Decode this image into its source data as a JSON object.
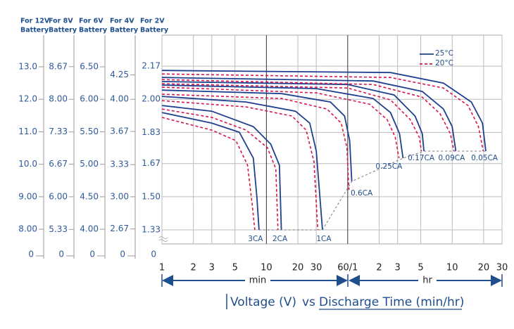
{
  "chart_data": {
    "type": "line",
    "log_x": true,
    "xlim": [
      1,
      1800
    ],
    "xticks": [
      1,
      2,
      3,
      5,
      10,
      20,
      30,
      {
        "value": 60,
        "label": "60/1"
      },
      {
        "value": 120,
        "label": "2"
      },
      {
        "value": 180,
        "label": "3"
      },
      {
        "value": 300,
        "label": "5"
      },
      {
        "value": 600,
        "label": "10"
      },
      {
        "value": 1200,
        "label": "20"
      },
      {
        "value": 1800,
        "label": "30"
      }
    ],
    "x_units": [
      "min",
      "hr"
    ],
    "caption": [
      "Voltage (V)",
      "vs",
      "Discharge Time (min/hr)"
    ],
    "y_axes": [
      {
        "title": [
          "For 12V",
          "Battery"
        ],
        "ylim": [
          7.548,
          13.974
        ],
        "break_label": "0",
        "ticks": [
          {
            "value": 8,
            "label": "8.00"
          },
          {
            "value": 9,
            "label": "9.00"
          },
          {
            "value": 10,
            "label": "10.0"
          },
          {
            "value": 11,
            "label": "11.0"
          },
          {
            "value": 12,
            "label": "12.0"
          },
          {
            "value": 13,
            "label": "13.0"
          }
        ]
      },
      {
        "title": [
          "For 8V",
          "Battery"
        ],
        "ylim": [
          5.032,
          9.316
        ],
        "break_label": "0",
        "ticks": [
          5.33,
          {
            "value": 6,
            "label": "6.00"
          },
          6.67,
          7.33,
          {
            "value": 8,
            "label": "8.00"
          },
          8.67
        ]
      },
      {
        "title": [
          "For 6V",
          "Battery"
        ],
        "ylim": [
          3.774,
          6.987
        ],
        "break_label": "0",
        "ticks": [
          {
            "value": 4,
            "label": "4.00"
          },
          {
            "value": 4.5,
            "label": "4.50"
          },
          {
            "value": 5,
            "label": "5.00"
          },
          {
            "value": 5.5,
            "label": "5.50"
          },
          {
            "value": 6,
            "label": "6.00"
          },
          {
            "value": 6.5,
            "label": "6.50"
          }
        ]
      },
      {
        "title": [
          "For 4V",
          "Battery"
        ],
        "ylim": [
          2.516,
          4.658
        ],
        "break_label": "0",
        "ticks": [
          2.67,
          {
            "value": 3,
            "label": "3.00"
          },
          3.33,
          3.67,
          {
            "value": 4,
            "label": "4.00"
          },
          4.25
        ]
      },
      {
        "title": [
          "For 2V",
          "Battery"
        ],
        "ylim": [
          1.258,
          2.329
        ],
        "break_label": "0",
        "ticks": [
          1.33,
          {
            "value": 1.5,
            "label": "1.50"
          },
          1.67,
          1.83,
          {
            "value": 2,
            "label": "2.00"
          },
          2.17
        ]
      }
    ],
    "grid": true,
    "legend": [
      {
        "name": "25°C",
        "color": "#1f3f8f",
        "dashed": false
      },
      {
        "name": "20°C",
        "color": "#d6154f",
        "dashed": true
      }
    ],
    "curves": [
      {
        "label": "3CA",
        "x": [
          1,
          3,
          5.5,
          7.5,
          8.1,
          8.5
        ],
        "values": [
          1.932,
          1.878,
          1.831,
          1.698,
          1.5,
          1.33
        ],
        "x_20": [
          1,
          3,
          5.1,
          6.6,
          7.3,
          7.75
        ],
        "values_20": [
          1.907,
          1.842,
          1.788,
          1.662,
          1.463,
          1.33
        ]
      },
      {
        "label": "2CA",
        "x": [
          1,
          3,
          7.5,
          11,
          13.3,
          13.9
        ],
        "values": [
          1.968,
          1.939,
          1.86,
          1.77,
          1.662,
          1.33
        ],
        "x_20": [
          1,
          3,
          6.4,
          10.2,
          12.3,
          12.9
        ],
        "values_20": [
          1.95,
          1.907,
          1.842,
          1.752,
          1.644,
          1.33
        ]
      },
      {
        "label": "1CA",
        "x": [
          1,
          6.4,
          19,
          26,
          30,
          32.5,
          34.4
        ],
        "values": [
          2.015,
          1.986,
          1.939,
          1.878,
          1.734,
          1.5,
          1.33
        ],
        "x_20": [
          1,
          6.4,
          17.6,
          24,
          28.5,
          31
        ],
        "values_20": [
          1.993,
          1.961,
          1.914,
          1.842,
          1.68,
          1.33
        ]
      },
      {
        "label": "0.6CA",
        "x": [
          1,
          14,
          41,
          56,
          62.6,
          65.6
        ],
        "values": [
          2.047,
          2.029,
          1.986,
          1.914,
          1.788,
          1.579
        ],
        "x_20": [
          1,
          14,
          38,
          52,
          59,
          61.7
        ],
        "values_20": [
          2.026,
          2.004,
          1.95,
          1.878,
          1.752,
          1.535
        ]
      },
      {
        "label": "0.25CA",
        "x": [
          1,
          30,
          105,
          154,
          188,
          203
        ],
        "values": [
          2.073,
          2.055,
          2.004,
          1.932,
          1.824,
          1.698
        ],
        "x_20": [
          1,
          30,
          97,
          143,
          171,
          186
        ],
        "values_20": [
          2.062,
          2.033,
          1.975,
          1.896,
          1.806,
          1.698
        ]
      },
      {
        "label": "0.17CA",
        "x": [
          1,
          60,
          167,
          265,
          310,
          322
        ],
        "values": [
          2.091,
          2.076,
          2.022,
          1.914,
          1.824,
          1.734
        ],
        "x_20": [
          1,
          60,
          154,
          238,
          290,
          305
        ],
        "values_20": [
          2.08,
          2.058,
          1.997,
          1.896,
          1.806,
          1.734
        ]
      },
      {
        "label": "0.09CA",
        "x": [
          1,
          105,
          310,
          495,
          600,
          650
        ],
        "values": [
          2.112,
          2.094,
          2.04,
          1.95,
          1.86,
          1.734
        ],
        "x_20": [
          1,
          105,
          310,
          460,
          575,
          625
        ],
        "values_20": [
          2.101,
          2.076,
          2.011,
          1.925,
          1.824,
          1.734
        ]
      },
      {
        "label": "0.05CA",
        "x": [
          1,
          154,
          495,
          915,
          1170,
          1260
        ],
        "values": [
          2.148,
          2.137,
          2.083,
          1.986,
          1.878,
          1.734
        ],
        "x_20": [
          1,
          154,
          495,
          850,
          1070,
          1190
        ],
        "values_20": [
          2.13,
          2.112,
          2.058,
          1.968,
          1.86,
          1.734
        ]
      }
    ]
  }
}
